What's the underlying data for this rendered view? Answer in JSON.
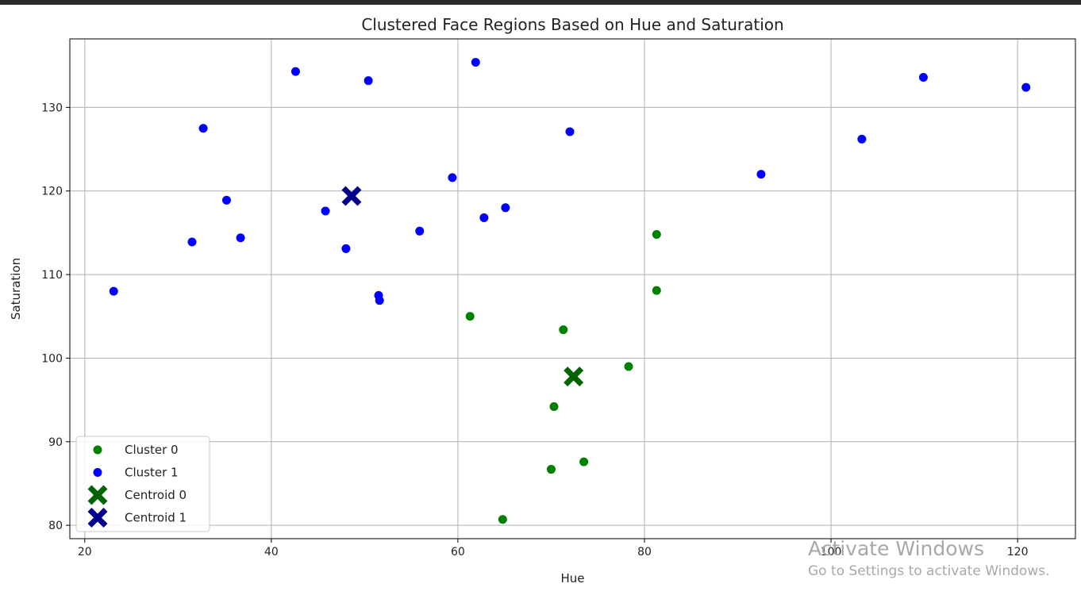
{
  "chart_data": {
    "type": "scatter",
    "title": "Clustered Face Regions Based on Hue and Saturation",
    "xlabel": "Hue",
    "ylabel": "Saturation",
    "xlim": [
      18.4,
      126.2
    ],
    "ylim": [
      78.4,
      138.2
    ],
    "xticks": [
      20,
      40,
      60,
      80,
      100,
      120
    ],
    "yticks": [
      80,
      90,
      100,
      110,
      120,
      130
    ],
    "grid": true,
    "legend_position": "lower-left",
    "series": [
      {
        "name": "Cluster 0",
        "color": "#008000",
        "marker": "circle",
        "points": [
          [
            81.3,
            114.8
          ],
          [
            81.3,
            108.1
          ],
          [
            61.3,
            105.0
          ],
          [
            71.3,
            103.4
          ],
          [
            78.3,
            99.0
          ],
          [
            70.3,
            94.2
          ],
          [
            73.5,
            87.6
          ],
          [
            70.0,
            86.7
          ],
          [
            64.8,
            80.7
          ]
        ]
      },
      {
        "name": "Cluster 1",
        "color": "#0000ff",
        "marker": "circle",
        "points": [
          [
            61.9,
            135.4
          ],
          [
            42.6,
            134.3
          ],
          [
            50.4,
            133.2
          ],
          [
            109.9,
            133.6
          ],
          [
            120.9,
            132.4
          ],
          [
            32.7,
            127.5
          ],
          [
            72.0,
            127.1
          ],
          [
            103.3,
            126.2
          ],
          [
            92.5,
            122.0
          ],
          [
            59.4,
            121.6
          ],
          [
            35.2,
            118.9
          ],
          [
            45.8,
            117.6
          ],
          [
            65.1,
            118.0
          ],
          [
            62.8,
            116.8
          ],
          [
            55.9,
            115.2
          ],
          [
            31.5,
            113.9
          ],
          [
            36.7,
            114.4
          ],
          [
            48.0,
            113.1
          ],
          [
            51.5,
            107.5
          ],
          [
            51.6,
            106.9
          ],
          [
            23.1,
            108.0
          ]
        ]
      },
      {
        "name": "Centroid 0",
        "color": "#006400",
        "marker": "x",
        "points": [
          [
            72.4,
            97.8
          ]
        ]
      },
      {
        "name": "Centroid 1",
        "color": "#00008b",
        "marker": "x",
        "points": [
          [
            48.6,
            119.4
          ]
        ]
      }
    ]
  },
  "watermark": {
    "line1": "Activate Windows",
    "line2": "Go to Settings to activate Windows."
  }
}
